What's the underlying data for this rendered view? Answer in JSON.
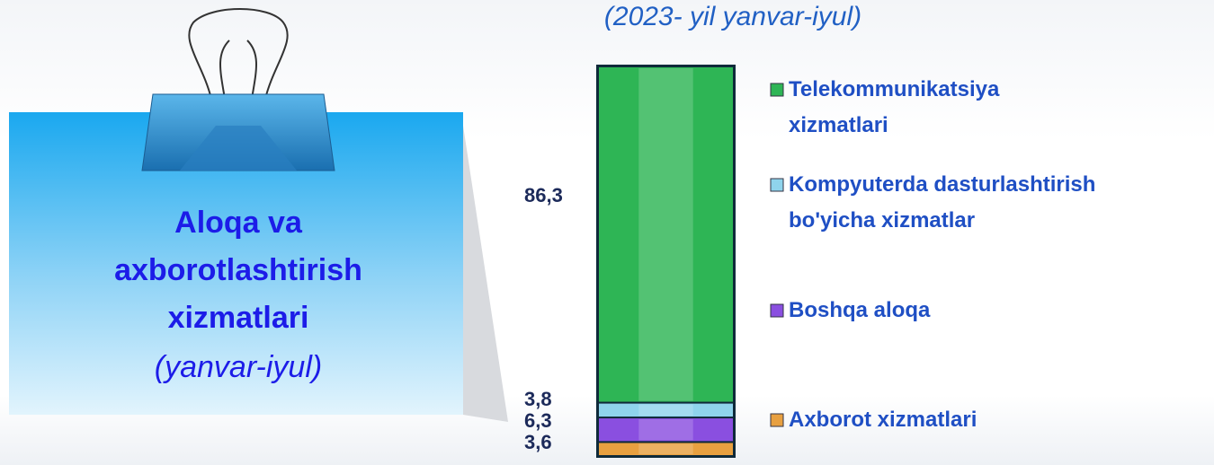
{
  "chart_data": {
    "type": "stacked-bar",
    "title": "Aloqa va axborotlashtirish xizmatlari",
    "title_period": "(yanvar-iyul)",
    "subtitle": "(2023- yil yanvar-iyul)",
    "categories": [
      null
    ],
    "ylim": [
      0,
      100
    ],
    "series": [
      {
        "name": "Axborot xizmatlari",
        "color": "#e8a040",
        "values": [
          3.6
        ],
        "value_labels": [
          "3,6"
        ]
      },
      {
        "name": "Boshqa aloqa",
        "color": "#8a4fe0",
        "values": [
          6.3
        ],
        "value_labels": [
          "6,3"
        ]
      },
      {
        "name": "Kompyuterda dasturlashtirish\nbo'yicha xizmatlar",
        "color": "#8fd4ec",
        "values": [
          3.8
        ],
        "value_labels": [
          "3,8"
        ]
      },
      {
        "name": "Telekommunikatsiya\nxizmatlari",
        "color": "#2eb555",
        "values": [
          86.3
        ],
        "value_labels": [
          "86,3"
        ]
      }
    ]
  }
}
